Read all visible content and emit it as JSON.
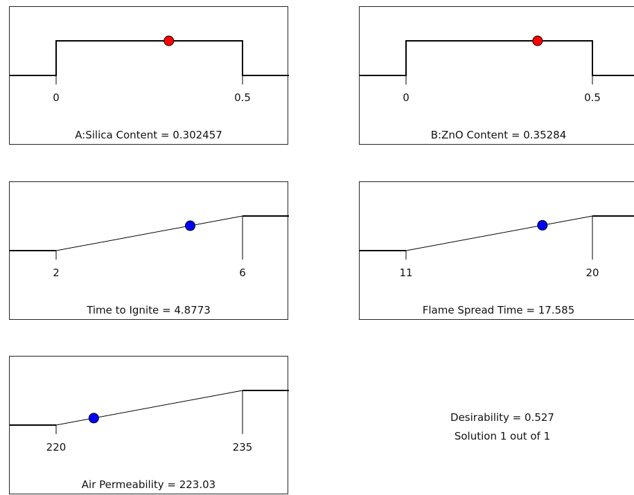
{
  "chart_data": [
    {
      "type": "desirability-ramp",
      "shape": "range",
      "low": 0,
      "high": 0.5,
      "low_label": "0",
      "high_label": "0.5",
      "value": 0.302457,
      "caption": "A:Silica Content = 0.302457",
      "marker_color": "#ff0000"
    },
    {
      "type": "desirability-ramp",
      "shape": "range",
      "low": 0,
      "high": 0.5,
      "low_label": "0",
      "high_label": "0.5",
      "value": 0.35284,
      "caption": "B:ZnO Content = 0.35284",
      "marker_color": "#ff0000"
    },
    {
      "type": "desirability-ramp",
      "shape": "maximize",
      "low": 2,
      "high": 6,
      "low_label": "2",
      "high_label": "6",
      "value": 4.8773,
      "caption": "Time to Ignite = 4.8773",
      "marker_color": "#0000ff"
    },
    {
      "type": "desirability-ramp",
      "shape": "maximize",
      "low": 11,
      "high": 20,
      "low_label": "11",
      "high_label": "20",
      "value": 17.585,
      "caption": "Flame Spread Time = 17.585",
      "marker_color": "#0000ff"
    },
    {
      "type": "desirability-ramp",
      "shape": "maximize",
      "low": 220,
      "high": 235,
      "low_label": "220",
      "high_label": "235",
      "value": 223.03,
      "caption": "Air Permeability = 223.03",
      "marker_color": "#0000ff"
    }
  ],
  "summary": {
    "desirability": "Desirability = 0.527",
    "solution": "Solution 1 out of 1"
  }
}
